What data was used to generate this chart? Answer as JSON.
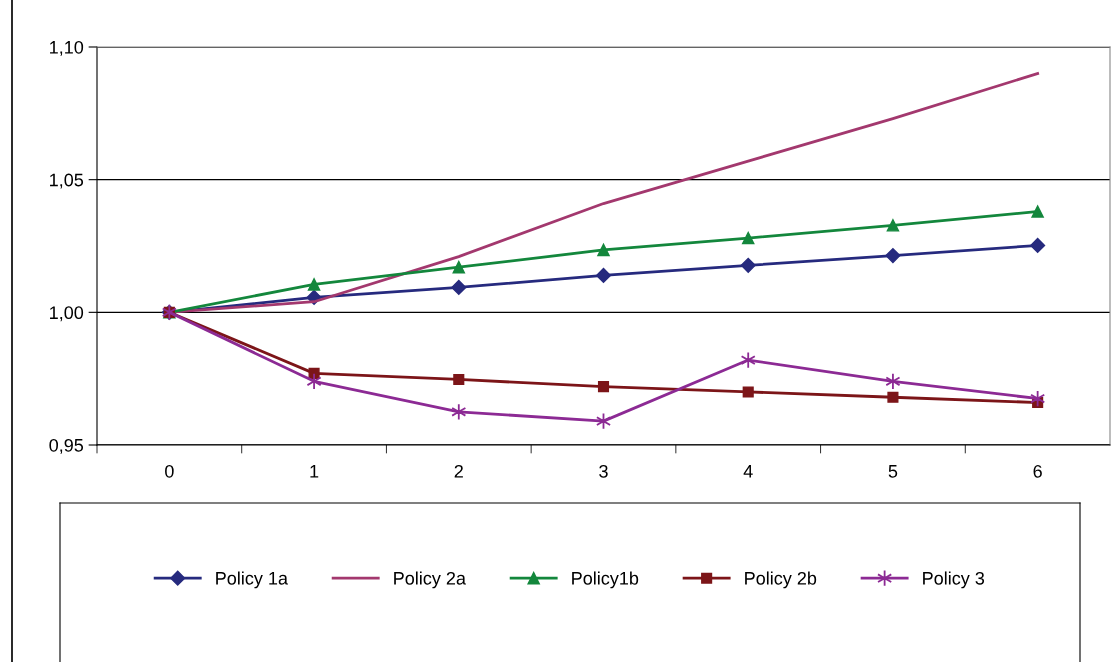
{
  "chart_data": {
    "type": "line",
    "categories": [
      "0",
      "1",
      "2",
      "3",
      "4",
      "5",
      "6"
    ],
    "ylim": [
      0.95,
      1.1
    ],
    "yticks": [
      {
        "value": 0.95,
        "label": "0,95"
      },
      {
        "value": 1.0,
        "label": "1,00"
      },
      {
        "value": 1.05,
        "label": "1,05"
      },
      {
        "value": 1.1,
        "label": "1,10"
      }
    ],
    "grid": "y",
    "legend": "bottom",
    "line_style": "solid",
    "series": [
      {
        "name": "Policy 1a",
        "color": "#262a7e",
        "marker": "diamond",
        "values": [
          1.0,
          1.0056,
          1.0094,
          1.0139,
          1.0177,
          1.0214,
          1.0252
        ]
      },
      {
        "name": "Policy 2a",
        "color": "#a3386e",
        "marker": "none",
        "values": [
          1.0,
          1.004,
          1.021,
          1.041,
          1.057,
          1.073,
          1.09
        ]
      },
      {
        "name": "Policy1b",
        "color": "#13873c",
        "marker": "triangle",
        "values": [
          1.0,
          1.0105,
          1.017,
          1.0235,
          1.028,
          1.0328,
          1.038
        ]
      },
      {
        "name": "Policy 2b",
        "color": "#7c1518",
        "marker": "square",
        "values": [
          1.0,
          0.977,
          0.9747,
          0.972,
          0.97,
          0.968,
          0.966
        ]
      },
      {
        "name": "Policy 3",
        "color": "#8c2a94",
        "marker": "cross",
        "values": [
          1.0,
          0.974,
          0.9625,
          0.959,
          0.982,
          0.974,
          0.9675
        ]
      }
    ]
  }
}
